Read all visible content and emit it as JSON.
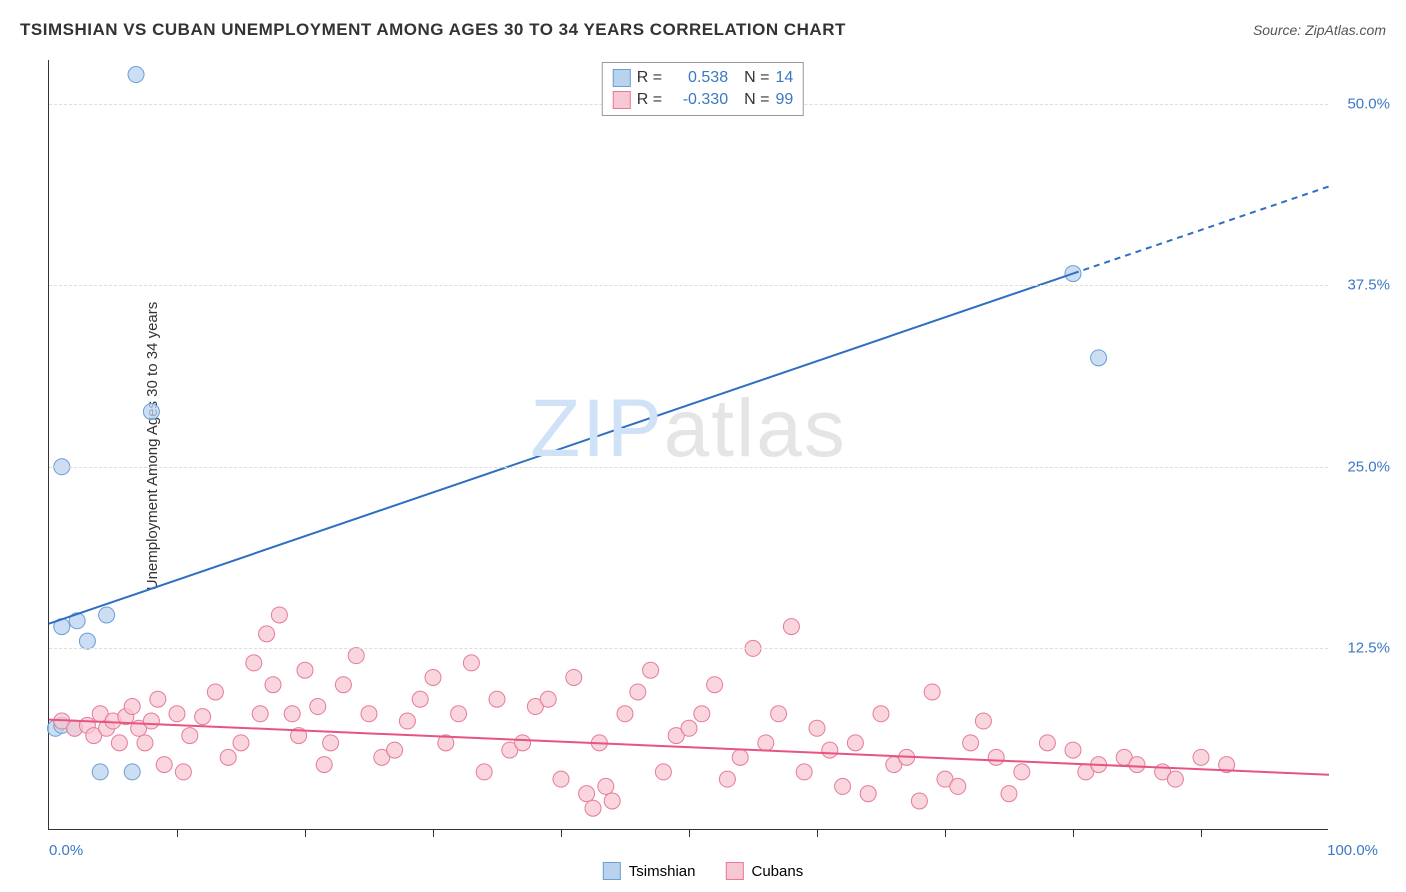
{
  "title": "TSIMSHIAN VS CUBAN UNEMPLOYMENT AMONG AGES 30 TO 34 YEARS CORRELATION CHART",
  "source": "Source: ZipAtlas.com",
  "y_axis_label": "Unemployment Among Ages 30 to 34 years",
  "watermark": {
    "part1": "ZIP",
    "part2": "atlas"
  },
  "chart": {
    "type": "scatter",
    "xlim": [
      0,
      100
    ],
    "ylim": [
      0,
      53
    ],
    "x_ticks_minor_step": 10,
    "x_tick_labels": [
      {
        "pos": 0,
        "text": "0.0%",
        "color": "#3b78c4"
      },
      {
        "pos": 100,
        "text": "100.0%",
        "color": "#3b78c4"
      }
    ],
    "y_gridlines": [
      12.5,
      25.0,
      37.5,
      50.0
    ],
    "y_tick_labels": [
      {
        "pos": 12.5,
        "text": "12.5%",
        "color": "#3b78c4"
      },
      {
        "pos": 25.0,
        "text": "25.0%",
        "color": "#3b78c4"
      },
      {
        "pos": 37.5,
        "text": "37.5%",
        "color": "#3b78c4"
      },
      {
        "pos": 50.0,
        "text": "50.0%",
        "color": "#3b78c4"
      }
    ],
    "grid_color": "#dddddd",
    "background_color": "#ffffff",
    "axis_color": "#333333",
    "series": [
      {
        "name": "Tsimshian",
        "marker_color_fill": "#b9d3ef",
        "marker_color_stroke": "#6a9fd4",
        "marker_radius": 8,
        "line_color": "#2f6ec1",
        "line_width": 2,
        "R": "0.538",
        "N": "14",
        "stat_color": "#3b78c4",
        "regression": {
          "x1": 0,
          "y1": 14.2,
          "x2": 80,
          "y2": 38.3,
          "x3": 100,
          "y3": 44.3
        },
        "points": [
          [
            0.5,
            7.0
          ],
          [
            1.0,
            7.2
          ],
          [
            2.0,
            7.0
          ],
          [
            1.0,
            14.0
          ],
          [
            2.2,
            14.4
          ],
          [
            3.0,
            13.0
          ],
          [
            4.5,
            14.8
          ],
          [
            1.0,
            25.0
          ],
          [
            8.0,
            28.8
          ],
          [
            6.8,
            52.0
          ],
          [
            4.0,
            4.0
          ],
          [
            6.5,
            4.0
          ],
          [
            80.0,
            38.3
          ],
          [
            82.0,
            32.5
          ]
        ]
      },
      {
        "name": "Cubans",
        "marker_color_fill": "#f7c7d3",
        "marker_color_stroke": "#e77a9a",
        "marker_radius": 8,
        "line_color": "#e75480",
        "line_width": 2,
        "R": "-0.330",
        "N": "99",
        "stat_color": "#3b78c4",
        "regression": {
          "x1": 0,
          "y1": 7.6,
          "x2": 100,
          "y2": 3.8
        },
        "points": [
          [
            1,
            7.5
          ],
          [
            2,
            7.0
          ],
          [
            3,
            7.2
          ],
          [
            3.5,
            6.5
          ],
          [
            4,
            8.0
          ],
          [
            4.5,
            7.0
          ],
          [
            5,
            7.5
          ],
          [
            5.5,
            6.0
          ],
          [
            6,
            7.8
          ],
          [
            6.5,
            8.5
          ],
          [
            7,
            7.0
          ],
          [
            7.5,
            6.0
          ],
          [
            8,
            7.5
          ],
          [
            8.5,
            9.0
          ],
          [
            9,
            4.5
          ],
          [
            10,
            8.0
          ],
          [
            10.5,
            4.0
          ],
          [
            11,
            6.5
          ],
          [
            12,
            7.8
          ],
          [
            13,
            9.5
          ],
          [
            14,
            5.0
          ],
          [
            15,
            6.0
          ],
          [
            16,
            11.5
          ],
          [
            16.5,
            8.0
          ],
          [
            17,
            13.5
          ],
          [
            17.5,
            10.0
          ],
          [
            18,
            14.8
          ],
          [
            19,
            8.0
          ],
          [
            19.5,
            6.5
          ],
          [
            20,
            11.0
          ],
          [
            21,
            8.5
          ],
          [
            21.5,
            4.5
          ],
          [
            22,
            6.0
          ],
          [
            23,
            10.0
          ],
          [
            24,
            12.0
          ],
          [
            25,
            8.0
          ],
          [
            26,
            5.0
          ],
          [
            27,
            5.5
          ],
          [
            28,
            7.5
          ],
          [
            29,
            9.0
          ],
          [
            30,
            10.5
          ],
          [
            31,
            6.0
          ],
          [
            32,
            8.0
          ],
          [
            33,
            11.5
          ],
          [
            34,
            4.0
          ],
          [
            35,
            9.0
          ],
          [
            36,
            5.5
          ],
          [
            37,
            6.0
          ],
          [
            38,
            8.5
          ],
          [
            39,
            9.0
          ],
          [
            40,
            3.5
          ],
          [
            41,
            10.5
          ],
          [
            42,
            2.5
          ],
          [
            42.5,
            1.5
          ],
          [
            43,
            6.0
          ],
          [
            43.5,
            3.0
          ],
          [
            44,
            2.0
          ],
          [
            45,
            8.0
          ],
          [
            46,
            9.5
          ],
          [
            47,
            11.0
          ],
          [
            48,
            4.0
          ],
          [
            49,
            6.5
          ],
          [
            50,
            7.0
          ],
          [
            51,
            8.0
          ],
          [
            52,
            10.0
          ],
          [
            53,
            3.5
          ],
          [
            54,
            5.0
          ],
          [
            55,
            12.5
          ],
          [
            56,
            6.0
          ],
          [
            57,
            8.0
          ],
          [
            58,
            14.0
          ],
          [
            59,
            4.0
          ],
          [
            60,
            7.0
          ],
          [
            61,
            5.5
          ],
          [
            62,
            3.0
          ],
          [
            63,
            6.0
          ],
          [
            64,
            2.5
          ],
          [
            65,
            8.0
          ],
          [
            66,
            4.5
          ],
          [
            67,
            5.0
          ],
          [
            68,
            2.0
          ],
          [
            69,
            9.5
          ],
          [
            70,
            3.5
          ],
          [
            71,
            3.0
          ],
          [
            72,
            6.0
          ],
          [
            73,
            7.5
          ],
          [
            74,
            5.0
          ],
          [
            75,
            2.5
          ],
          [
            76,
            4.0
          ],
          [
            78,
            6.0
          ],
          [
            80,
            5.5
          ],
          [
            81,
            4.0
          ],
          [
            82,
            4.5
          ],
          [
            84,
            5.0
          ],
          [
            85,
            4.5
          ],
          [
            87,
            4.0
          ],
          [
            88,
            3.5
          ],
          [
            90,
            5.0
          ],
          [
            92,
            4.5
          ]
        ]
      }
    ],
    "legend_stats_labels": {
      "R": "R =",
      "N": "N ="
    }
  }
}
